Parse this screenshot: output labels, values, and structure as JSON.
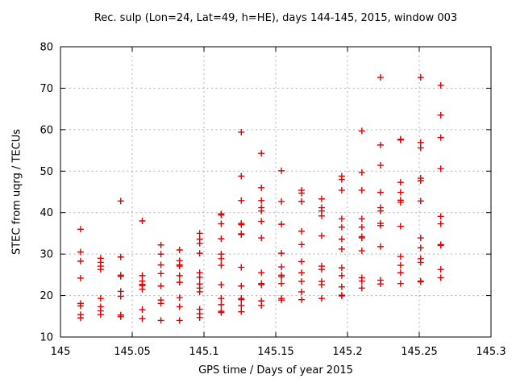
{
  "chart_data": {
    "type": "scatter",
    "title": "Rec. sulp (Lon=24, Lat=49, h=HE), days 144-145, 2015, window 003",
    "xlabel": "GPS time / Days of year 2015",
    "ylabel": "STEC from uqrg / TECUs",
    "xlim": [
      145.0,
      145.3
    ],
    "ylim": [
      10,
      80
    ],
    "xticks": [
      145.0,
      145.05,
      145.1,
      145.15,
      145.2,
      145.25,
      145.3
    ],
    "xtick_labels": [
      "145",
      "145.05",
      "145.1",
      "145.15",
      "145.2",
      "145.25",
      "145.3"
    ],
    "yticks": [
      10,
      20,
      30,
      40,
      50,
      60,
      70,
      80
    ],
    "ytick_labels": [
      "10",
      "20",
      "30",
      "40",
      "50",
      "60",
      "70",
      "80"
    ],
    "grid": true,
    "grid_style": "dashed",
    "legend": "none",
    "marker": "plus",
    "colors": {
      "marker": "#e10000",
      "grid": "#b0b0b0",
      "border": "#000000",
      "text": "#000000",
      "background": "#ffffff"
    },
    "series": [
      {
        "x": 145.014,
        "ys": [
          36.0,
          30.5,
          28.3,
          24.2,
          18.1,
          17.5,
          15.4,
          14.6
        ]
      },
      {
        "x": 145.028,
        "ys": [
          29.0,
          28.0,
          27.1,
          26.3,
          19.3,
          17.3,
          16.3,
          15.4
        ]
      },
      {
        "x": 145.042,
        "ys": [
          42.8,
          29.3,
          24.9,
          24.6,
          21.0,
          19.8,
          15.3,
          14.9
        ]
      },
      {
        "x": 145.057,
        "ys": [
          38.0,
          24.8,
          23.5,
          22.7,
          22.4,
          21.5,
          16.6,
          14.4
        ]
      },
      {
        "x": 145.07,
        "ys": [
          32.2,
          30.0,
          27.4,
          25.3,
          22.3,
          18.9,
          18.1,
          14.0
        ]
      },
      {
        "x": 145.083,
        "ys": [
          31.0,
          28.4,
          27.4,
          27.1,
          24.8,
          23.2,
          19.5,
          17.3,
          14.0
        ]
      },
      {
        "x": 145.097,
        "ys": [
          35.0,
          33.6,
          32.6,
          30.2,
          25.5,
          24.4,
          22.8,
          21.8,
          20.9,
          16.7,
          15.6,
          14.7
        ]
      },
      {
        "x": 145.112,
        "ys": [
          39.7,
          39.4,
          37.3,
          33.7,
          30.0,
          28.9,
          27.3,
          22.6,
          19.3,
          17.8,
          16.2,
          15.9
        ]
      },
      {
        "x": 145.126,
        "ys": [
          59.4,
          48.8,
          42.9,
          37.4,
          37.1,
          34.9,
          34.7,
          26.8,
          22.3,
          19.3,
          19.0,
          17.6,
          16.1
        ]
      },
      {
        "x": 145.14,
        "ys": [
          54.3,
          46.0,
          42.9,
          41.2,
          40.4,
          37.9,
          33.9,
          25.5,
          22.9,
          22.6,
          18.7,
          17.6
        ]
      },
      {
        "x": 145.154,
        "ys": [
          50.1,
          42.7,
          37.2,
          30.2,
          26.9,
          24.9,
          24.5,
          22.9,
          19.3,
          18.9
        ]
      },
      {
        "x": 145.168,
        "ys": [
          45.4,
          44.7,
          42.7,
          35.5,
          32.3,
          28.2,
          25.5,
          23.4,
          20.9,
          19.0
        ]
      },
      {
        "x": 145.182,
        "ys": [
          43.3,
          41.2,
          40.4,
          39.2,
          34.4,
          27.1,
          26.3,
          23.4,
          22.6,
          19.3
        ]
      },
      {
        "x": 145.196,
        "ys": [
          48.8,
          48.0,
          45.4,
          38.5,
          36.5,
          33.6,
          31.2,
          26.7,
          24.8,
          22.1,
          20.1,
          19.9
        ]
      },
      {
        "x": 145.21,
        "ys": [
          59.7,
          49.7,
          45.4,
          38.5,
          36.5,
          34.2,
          33.9,
          30.8,
          24.3,
          23.5,
          21.8
        ]
      },
      {
        "x": 145.223,
        "ys": [
          72.6,
          56.3,
          51.4,
          44.9,
          41.2,
          40.4,
          37.4,
          36.9,
          31.8,
          23.7,
          22.8
        ]
      },
      {
        "x": 145.237,
        "ys": [
          57.7,
          57.5,
          47.3,
          44.9,
          43.0,
          42.5,
          36.7,
          29.4,
          27.3,
          25.5,
          22.9
        ]
      },
      {
        "x": 145.251,
        "ys": [
          72.6,
          56.9,
          55.6,
          48.3,
          47.7,
          42.8,
          33.9,
          31.5,
          28.9,
          28.0,
          23.5,
          23.3
        ]
      },
      {
        "x": 145.265,
        "ys": [
          70.7,
          63.5,
          58.1,
          50.6,
          39.1,
          37.3,
          32.3,
          32.1,
          26.3,
          24.3
        ]
      }
    ]
  }
}
